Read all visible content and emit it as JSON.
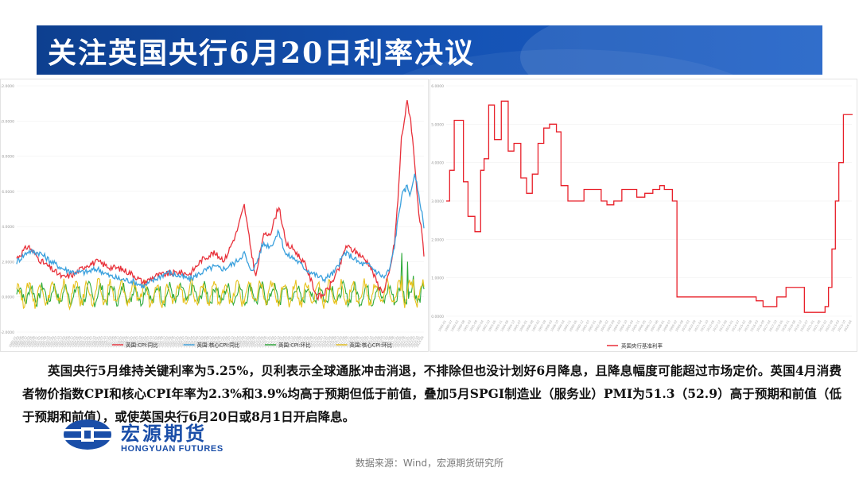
{
  "slide": {
    "title": "关注英国央行6月20日利率决议",
    "paragraph": "英国央行5月维持关键利率为5.25%，贝利表示全球通胀冲击消退，不排除但也没计划好6月降息，且降息幅度可能超过市场定价。英国4月消费者物价指数CPI和核心CPI年率为2.3%和3.9%均高于预期但低于前值，叠加5月SPGI制造业（服务业）PMI为51.3（52.9）高于预期和前值（低于预期和前值），或使英国央行6月20日或8月1日开启降息。",
    "source": "数据来源：Wind，宏源期货研究所"
  },
  "logo": {
    "name_cn": "宏源期货",
    "name_en": "HONGYUAN FUTURES"
  },
  "colors": {
    "title_bg": "#1553b5",
    "cpi_yoy": "#e8303a",
    "core_cpi_yoy": "#3aa0dd",
    "cpi_mom": "#2eaa3a",
    "core_cpi_mom": "#e8c21c",
    "policy_rate": "#e8202a"
  },
  "chart_data": [
    {
      "type": "line",
      "ylim": [
        -2,
        12
      ],
      "yticks": [
        "-2.0000",
        "0.0000",
        "2.0000",
        "4.0000",
        "6.0000",
        "8.0000",
        "10.0000",
        "12.0000"
      ],
      "x_range": [
        "1989-01",
        "2024-04"
      ],
      "legend_position": "bottom",
      "series": [
        {
          "name": "英国:CPI:同比",
          "color": "#e8303a",
          "points": [
            [
              1989,
              2.2
            ],
            [
              1990,
              2.9
            ],
            [
              1991,
              2.1
            ],
            [
              1992,
              1.6
            ],
            [
              1993,
              1.1
            ],
            [
              1994,
              1.3
            ],
            [
              1995,
              1.8
            ],
            [
              1996,
              2.0
            ],
            [
              1997,
              1.7
            ],
            [
              1998,
              1.6
            ],
            [
              1999,
              1.3
            ],
            [
              2000,
              0.8
            ],
            [
              2001,
              1.2
            ],
            [
              2002,
              1.3
            ],
            [
              2003,
              1.4
            ],
            [
              2004,
              1.3
            ],
            [
              2005,
              2.1
            ],
            [
              2006,
              2.5
            ],
            [
              2007,
              2.1
            ],
            [
              2008,
              3.6
            ],
            [
              2008.7,
              5.2
            ],
            [
              2009.2,
              3.0
            ],
            [
              2009.7,
              1.1
            ],
            [
              2010.3,
              3.4
            ],
            [
              2011,
              3.7
            ],
            [
              2011.7,
              5.2
            ],
            [
              2012.3,
              3.0
            ],
            [
              2013,
              2.7
            ],
            [
              2014,
              1.8
            ],
            [
              2015,
              0.0
            ],
            [
              2015.5,
              0.1
            ],
            [
              2016,
              0.5
            ],
            [
              2016.9,
              1.6
            ],
            [
              2017.5,
              2.9
            ],
            [
              2018,
              2.7
            ],
            [
              2018.7,
              2.4
            ],
            [
              2019.5,
              1.9
            ],
            [
              2020.4,
              0.5
            ],
            [
              2020.8,
              0.3
            ],
            [
              2021.3,
              1.5
            ],
            [
              2021.7,
              3.1
            ],
            [
              2022,
              5.5
            ],
            [
              2022.3,
              9.0
            ],
            [
              2022.8,
              11.1
            ],
            [
              2023.1,
              10.1
            ],
            [
              2023.5,
              7.3
            ],
            [
              2023.8,
              4.6
            ],
            [
              2024.0,
              4.0
            ],
            [
              2024.25,
              2.3
            ]
          ]
        },
        {
          "name": "英国:核心CPI:同比",
          "color": "#3aa0dd",
          "points": [
            [
              1989,
              2.0
            ],
            [
              1990,
              2.6
            ],
            [
              1991,
              2.5
            ],
            [
              1992,
              2.0
            ],
            [
              1993,
              1.6
            ],
            [
              1994,
              1.4
            ],
            [
              1995,
              1.4
            ],
            [
              1996,
              1.6
            ],
            [
              1997,
              1.2
            ],
            [
              1998,
              1.0
            ],
            [
              1999,
              0.9
            ],
            [
              2000,
              0.6
            ],
            [
              2001,
              1.0
            ],
            [
              2002,
              1.4
            ],
            [
              2003,
              1.2
            ],
            [
              2004,
              1.0
            ],
            [
              2005,
              1.4
            ],
            [
              2006,
              1.7
            ],
            [
              2007,
              1.6
            ],
            [
              2008,
              2.0
            ],
            [
              2008.7,
              2.5
            ],
            [
              2009.2,
              1.5
            ],
            [
              2009.7,
              1.8
            ],
            [
              2010.3,
              3.0
            ],
            [
              2011,
              2.9
            ],
            [
              2011.7,
              3.7
            ],
            [
              2012.3,
              2.4
            ],
            [
              2013,
              2.2
            ],
            [
              2014,
              1.6
            ],
            [
              2015,
              1.2
            ],
            [
              2015.6,
              1.0
            ],
            [
              2016.5,
              1.4
            ],
            [
              2017.4,
              2.5
            ],
            [
              2018,
              2.3
            ],
            [
              2018.7,
              1.9
            ],
            [
              2019.5,
              1.8
            ],
            [
              2020.4,
              1.3
            ],
            [
              2020.8,
              1.1
            ],
            [
              2021.3,
              1.6
            ],
            [
              2021.7,
              2.9
            ],
            [
              2022,
              4.4
            ],
            [
              2022.3,
              5.7
            ],
            [
              2022.8,
              6.3
            ],
            [
              2023.1,
              5.8
            ],
            [
              2023.45,
              7.1
            ],
            [
              2023.8,
              5.7
            ],
            [
              2024.0,
              5.1
            ],
            [
              2024.25,
              3.9
            ]
          ]
        },
        {
          "name": "英国:CPI:环比",
          "color": "#2eaa3a",
          "kind": "seasonal",
          "base": 0.15,
          "amp": 0.45,
          "spikes": [
            [
              2022.3,
              2.5
            ],
            [
              2022.8,
              2.0
            ],
            [
              2023.3,
              1.2
            ]
          ]
        },
        {
          "name": "英国:核心CPI:环比",
          "color": "#e8c21c",
          "kind": "seasonal",
          "base": 0.2,
          "amp": 0.6,
          "spikes": [
            [
              2022.3,
              1.2
            ],
            [
              2023.3,
              1.0
            ]
          ]
        }
      ]
    },
    {
      "type": "line",
      "ylim": [
        0,
        6
      ],
      "yticks": [
        "0.0000",
        "1.0000",
        "2.0000",
        "3.0000",
        "4.0000",
        "5.0000",
        "6.0000"
      ],
      "x_range": [
        "1989-01",
        "2024-05"
      ],
      "legend_position": "bottom-left",
      "series": [
        {
          "name": "英国央行基准利率",
          "color": "#e8202a",
          "points": [
            [
              1989.0,
              3.0
            ],
            [
              1989.3,
              3.8
            ],
            [
              1989.7,
              5.1
            ],
            [
              1990.5,
              3.5
            ],
            [
              1990.9,
              2.6
            ],
            [
              1991.5,
              2.2
            ],
            [
              1992.0,
              3.8
            ],
            [
              1992.3,
              4.1
            ],
            [
              1992.7,
              5.5
            ],
            [
              1993.2,
              4.6
            ],
            [
              1993.8,
              5.6
            ],
            [
              1994.4,
              4.3
            ],
            [
              1994.9,
              4.5
            ],
            [
              1995.5,
              3.6
            ],
            [
              1996.0,
              3.2
            ],
            [
              1996.5,
              3.7
            ],
            [
              1997.0,
              4.5
            ],
            [
              1997.5,
              4.9
            ],
            [
              1998.0,
              5.0
            ],
            [
              1998.6,
              4.8
            ],
            [
              1999.0,
              3.4
            ],
            [
              1999.6,
              3.0
            ],
            [
              2000.3,
              3.0
            ],
            [
              2001.0,
              3.3
            ],
            [
              2001.6,
              3.3
            ],
            [
              2002.0,
              3.3
            ],
            [
              2002.5,
              3.0
            ],
            [
              2003.0,
              2.9
            ],
            [
              2003.6,
              3.0
            ],
            [
              2004.3,
              3.3
            ],
            [
              2005.0,
              3.3
            ],
            [
              2005.6,
              3.1
            ],
            [
              2006.3,
              3.2
            ],
            [
              2007.0,
              3.3
            ],
            [
              2007.6,
              3.4
            ],
            [
              2008.0,
              3.3
            ],
            [
              2008.7,
              3.0
            ],
            [
              2009.1,
              0.5
            ],
            [
              2010.0,
              0.5
            ],
            [
              2012.0,
              0.5
            ],
            [
              2014.0,
              0.5
            ],
            [
              2016.0,
              0.4
            ],
            [
              2016.6,
              0.25
            ],
            [
              2017.8,
              0.5
            ],
            [
              2018.6,
              0.75
            ],
            [
              2020.0,
              0.75
            ],
            [
              2020.2,
              0.1
            ],
            [
              2021.9,
              0.1
            ],
            [
              2022.0,
              0.25
            ],
            [
              2022.3,
              0.75
            ],
            [
              2022.6,
              1.75
            ],
            [
              2022.9,
              3.0
            ],
            [
              2023.2,
              4.0
            ],
            [
              2023.6,
              5.25
            ],
            [
              2024.4,
              5.25
            ]
          ]
        }
      ]
    }
  ]
}
